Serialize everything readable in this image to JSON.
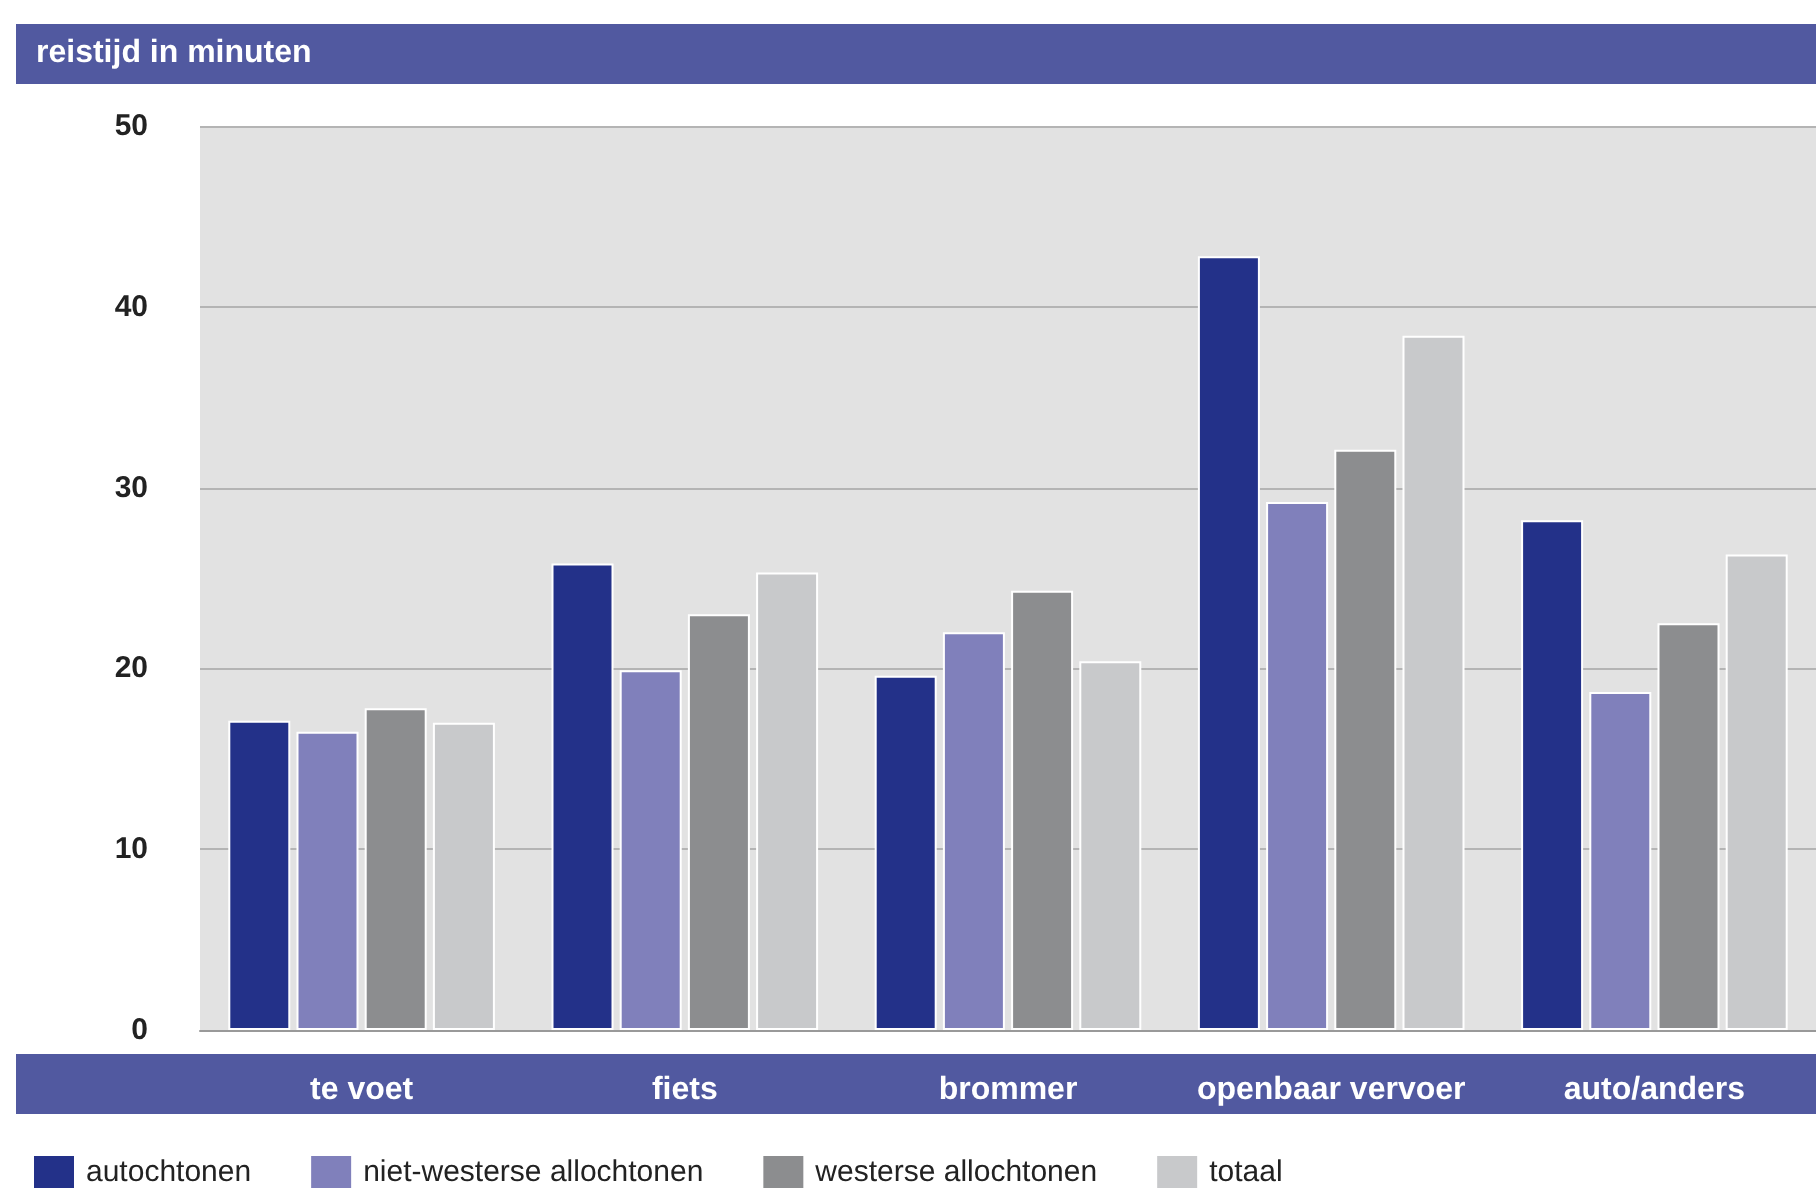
{
  "chart_data": {
    "type": "bar",
    "title": "reistijd in minuten",
    "categories": [
      "te voet",
      "fiets",
      "brommer",
      "openbaar vervoer",
      "auto/anders"
    ],
    "series": [
      {
        "name": "autochtonen",
        "color": "#233189",
        "values": [
          17.1,
          25.8,
          19.6,
          42.8,
          28.2
        ]
      },
      {
        "name": "niet-westerse allochtonen",
        "color": "#8080bb",
        "values": [
          16.5,
          19.9,
          22.0,
          29.2,
          18.7
        ]
      },
      {
        "name": "westerse allochtonen",
        "color": "#8c8d8f",
        "values": [
          17.8,
          23.0,
          24.3,
          32.1,
          22.5
        ]
      },
      {
        "name": "totaal",
        "color": "#c8c9cb",
        "values": [
          17.0,
          25.3,
          20.4,
          38.4,
          26.3
        ]
      }
    ],
    "ylim": [
      0,
      50
    ],
    "yticks": [
      0,
      10,
      20,
      30,
      40,
      50
    ],
    "grid": "y",
    "legend": "bottom left"
  }
}
